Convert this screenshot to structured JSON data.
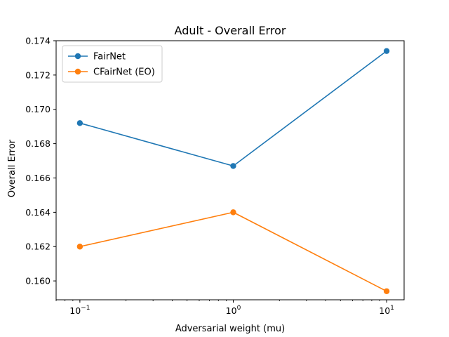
{
  "chart_data": {
    "type": "line",
    "title": "Adult - Overall Error",
    "xlabel": "Adversarial weight (mu)",
    "ylabel": "Overall Error",
    "x_scale": "log",
    "x": [
      0.1,
      1,
      10
    ],
    "x_tick_labels": [
      {
        "base": "10",
        "exp": "−1"
      },
      {
        "base": "10",
        "exp": "0"
      },
      {
        "base": "10",
        "exp": "1"
      }
    ],
    "xlim": [
      0.07,
      13
    ],
    "ylim": [
      0.1589,
      0.174
    ],
    "y_ticks": [
      0.16,
      0.162,
      0.164,
      0.166,
      0.168,
      0.17,
      0.172,
      0.174
    ],
    "y_tick_labels": [
      "0.160",
      "0.162",
      "0.164",
      "0.166",
      "0.168",
      "0.170",
      "0.172",
      "0.174"
    ],
    "grid": false,
    "legend_position": "top-left",
    "series": [
      {
        "name": "FairNet",
        "color": "#1f77b4",
        "values": [
          0.1692,
          0.1667,
          0.1734
        ]
      },
      {
        "name": "CFairNet (EO)",
        "color": "#ff7f0e",
        "values": [
          0.162,
          0.164,
          0.1594
        ]
      }
    ]
  }
}
